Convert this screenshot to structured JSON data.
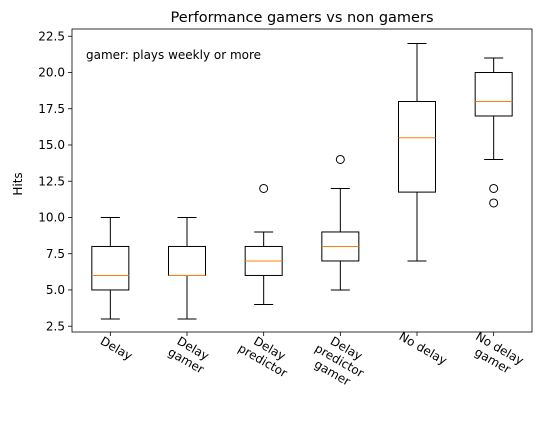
{
  "chart_data": {
    "type": "boxplot",
    "title": "Performance gamers vs non gamers",
    "xlabel": "",
    "ylabel": "Hits",
    "annotation": "gamer: plays weekly or more",
    "ylim": [
      2.1,
      23.0
    ],
    "yticks": [
      2.5,
      5.0,
      7.5,
      10.0,
      12.5,
      15.0,
      17.5,
      20.0,
      22.5
    ],
    "ytick_labels": [
      "2.5",
      "5.0",
      "7.5",
      "10.0",
      "12.5",
      "15.0",
      "17.5",
      "20.0",
      "22.5"
    ],
    "grid": false,
    "colors": {
      "box": "#000000",
      "median": "#ff7f0e",
      "axes": "#000000"
    },
    "categories": [
      [
        "Delay"
      ],
      [
        "Delay",
        "gamer"
      ],
      [
        "Delay",
        "predictor"
      ],
      [
        "Delay",
        "predictor",
        "gamer"
      ],
      [
        "No delay"
      ],
      [
        "No delay",
        "gamer"
      ]
    ],
    "boxes": [
      {
        "whislo": 3,
        "q1": 5,
        "med": 6,
        "q3": 8,
        "whishi": 10,
        "fliers": []
      },
      {
        "whislo": 3,
        "q1": 6,
        "med": 6,
        "q3": 8,
        "whishi": 10,
        "fliers": []
      },
      {
        "whislo": 4,
        "q1": 6,
        "med": 7,
        "q3": 8,
        "whishi": 9,
        "fliers": [
          12
        ]
      },
      {
        "whislo": 5,
        "q1": 7,
        "med": 8,
        "q3": 9,
        "whishi": 12,
        "fliers": [
          14
        ]
      },
      {
        "whislo": 7,
        "q1": 11.75,
        "med": 15.5,
        "q3": 18,
        "whishi": 22,
        "fliers": []
      },
      {
        "whislo": 14,
        "q1": 17,
        "med": 18,
        "q3": 20,
        "whishi": 21,
        "fliers": [
          12,
          11
        ]
      }
    ]
  }
}
